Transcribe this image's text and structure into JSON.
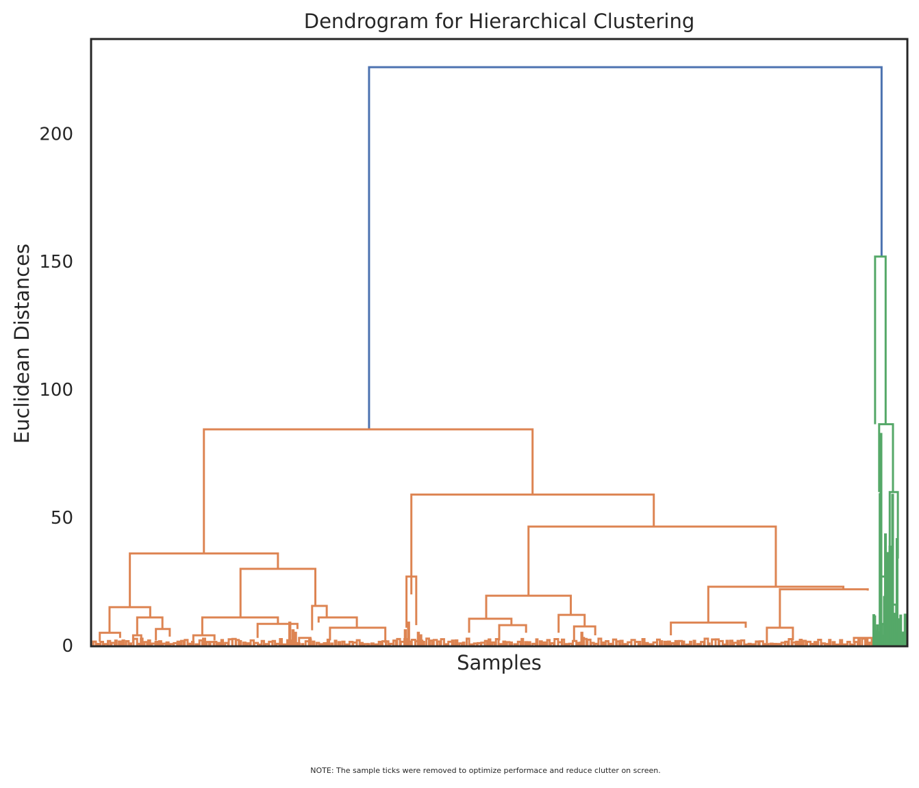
{
  "chart_data": {
    "type": "dendrogram",
    "title": "Dendrogram for Hierarchical Clustering",
    "xlabel": "Samples",
    "ylabel": "Euclidean Distances",
    "ylim": [
      0,
      237
    ],
    "xlim": [
      0,
      1000
    ],
    "yticks": [
      0,
      50,
      100,
      150,
      200
    ],
    "ytick_labels": [
      "0",
      "50",
      "100",
      "150",
      "200"
    ],
    "xticks_visible": false,
    "grid": false,
    "legend": "none",
    "note": "NOTE: The sample ticks were removed to optimize performace and reduce clutter on screen.",
    "colors": {
      "root": "#4c72b0",
      "cluster_1": "#dd8452",
      "cluster_2": "#55a868",
      "axes": "#262626"
    },
    "links": [
      {
        "x": [
          340,
          340,
          970,
          970
        ],
        "y": [
          84.5,
          226,
          226,
          152
        ],
        "color": "root"
      },
      {
        "x": [
          137,
          137,
          541,
          541
        ],
        "y": [
          36,
          84.5,
          84.5,
          59
        ],
        "color": "cluster_1"
      },
      {
        "x": [
          46,
          46,
          228,
          228
        ],
        "y": [
          15,
          36,
          36,
          30
        ],
        "color": "cluster_1"
      },
      {
        "x": [
          182,
          182,
          274,
          274
        ],
        "y": [
          11,
          30,
          30,
          15.5
        ],
        "color": "cluster_1"
      },
      {
        "x": [
          21,
          21,
          71,
          71
        ],
        "y": [
          5,
          15,
          15,
          11
        ],
        "color": "cluster_1"
      },
      {
        "x": [
          9,
          9,
          34,
          34
        ],
        "y": [
          1.5,
          5,
          5,
          3
        ],
        "color": "cluster_1"
      },
      {
        "x": [
          55,
          55,
          86,
          86
        ],
        "y": [
          4,
          11,
          11,
          6.5
        ],
        "color": "cluster_1"
      },
      {
        "x": [
          50,
          50,
          60,
          60
        ],
        "y": [
          1,
          4,
          4,
          1.5
        ],
        "color": "cluster_1"
      },
      {
        "x": [
          78,
          78,
          95,
          95
        ],
        "y": [
          2,
          6.5,
          6.5,
          3.5
        ],
        "color": "cluster_1"
      },
      {
        "x": [
          135,
          135,
          228,
          228
        ],
        "y": [
          4,
          11,
          11,
          8.5
        ],
        "color": "cluster_1"
      },
      {
        "x": [
          124,
          124,
          150,
          150
        ],
        "y": [
          1,
          4,
          4,
          2
        ],
        "color": "cluster_1"
      },
      {
        "x": [
          203,
          203,
          252,
          252
        ],
        "y": [
          3,
          8.5,
          8.5,
          6.5
        ],
        "color": "cluster_1"
      },
      {
        "x": [
          270,
          270,
          288,
          288
        ],
        "y": [
          6,
          15.5,
          15.5,
          11
        ],
        "color": "cluster_1"
      },
      {
        "x": [
          278,
          278,
          325,
          325
        ],
        "y": [
          9,
          11,
          11,
          7
        ],
        "color": "cluster_1"
      },
      {
        "x": [
          292,
          292,
          360,
          360
        ],
        "y": [
          2,
          7,
          7,
          1
        ],
        "color": "cluster_1"
      },
      {
        "x": [
          254,
          254,
          268,
          268
        ],
        "y": [
          1,
          3,
          3,
          1
        ],
        "color": "cluster_1"
      },
      {
        "x": [
          392,
          392,
          690,
          690
        ],
        "y": [
          20,
          59,
          59,
          46.5
        ],
        "color": "cluster_1"
      },
      {
        "x": [
          386,
          386,
          398,
          398
        ],
        "y": [
          7,
          27,
          27,
          8
        ],
        "color": "cluster_1"
      },
      {
        "x": [
          536,
          536,
          840,
          840
        ],
        "y": [
          19.5,
          46.5,
          46.5,
          23
        ],
        "color": "cluster_1"
      },
      {
        "x": [
          484,
          484,
          588,
          588
        ],
        "y": [
          10.5,
          19.5,
          19.5,
          12
        ],
        "color": "cluster_1"
      },
      {
        "x": [
          463,
          463,
          515,
          515
        ],
        "y": [
          5,
          10.5,
          10.5,
          8
        ],
        "color": "cluster_1"
      },
      {
        "x": [
          500,
          500,
          533,
          533
        ],
        "y": [
          2,
          8,
          8,
          5
        ],
        "color": "cluster_1"
      },
      {
        "x": [
          573,
          573,
          605,
          605
        ],
        "y": [
          5,
          12,
          12,
          7.5
        ],
        "color": "cluster_1"
      },
      {
        "x": [
          592,
          592,
          618,
          618
        ],
        "y": [
          2,
          7.5,
          7.5,
          4
        ],
        "color": "cluster_1"
      },
      {
        "x": [
          757,
          757,
          923,
          923
        ],
        "y": [
          9,
          23,
          23,
          22
        ],
        "color": "cluster_1"
      },
      {
        "x": [
          711,
          711,
          803,
          803
        ],
        "y": [
          4,
          9,
          9,
          7
        ],
        "color": "cluster_1"
      },
      {
        "x": [
          845,
          845,
          953,
          953
        ],
        "y": [
          7,
          22,
          22,
          21.5
        ],
        "color": "cluster_1"
      },
      {
        "x": [
          829,
          829,
          861,
          861
        ],
        "y": [
          1,
          7,
          7,
          2
        ],
        "color": "cluster_1"
      },
      {
        "x": [
          936,
          936,
          958,
          958
        ],
        "y": [
          1,
          3,
          3,
          1
        ],
        "color": "cluster_1"
      },
      {
        "x": [
          962,
          962,
          975,
          975
        ],
        "y": [
          86.5,
          152,
          152,
          86.5
        ],
        "color": "cluster_2"
      },
      {
        "x": [
          967,
          967,
          984,
          984
        ],
        "y": [
          60,
          86.5,
          86.5,
          60
        ],
        "color": "cluster_2"
      },
      {
        "x": [
          980,
          980,
          990,
          990
        ],
        "y": [
          34,
          60,
          60,
          34
        ],
        "color": "cluster_2"
      },
      {
        "x": [
          969,
          969,
          977,
          977
        ],
        "y": [
          15,
          27,
          27,
          15
        ],
        "color": "cluster_2"
      },
      {
        "x": [
          973,
          973,
          979,
          979
        ],
        "y": [
          8,
          19,
          19,
          8
        ],
        "color": "cluster_2"
      },
      {
        "x": [
          984,
          984,
          988,
          988
        ],
        "y": [
          10,
          16,
          16,
          10
        ],
        "color": "cluster_2"
      }
    ]
  }
}
